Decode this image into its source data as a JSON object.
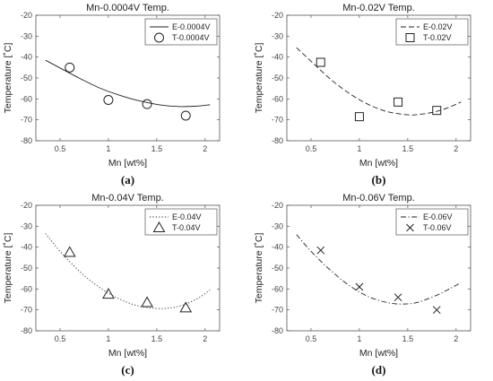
{
  "figure": {
    "panels": [
      "(a)",
      "(b)",
      "(c)",
      "(d)"
    ]
  },
  "chart_data": [
    {
      "type": "line",
      "panel_label": "(a)",
      "title": "Mn-0.0004V Temp.",
      "xlabel": "Mn [wt%]",
      "ylabel": "Temperature [˚C]",
      "xlim": [
        0.25,
        2.15
      ],
      "ylim": [
        -80,
        -20
      ],
      "xticks": [
        0.5,
        1,
        1.5,
        2
      ],
      "xtick_labels": [
        "0.5",
        "1",
        "1.5",
        "2"
      ],
      "yticks": [
        -80,
        -70,
        -60,
        -50,
        -40,
        -30,
        -20
      ],
      "ytick_labels": [
        "-80",
        "-70",
        "-60",
        "-50",
        "-40",
        "-30",
        "-20"
      ],
      "legend_position": "top-right",
      "series": [
        {
          "name": "E-0.0004V",
          "kind": "curve",
          "dash": "solid",
          "x": [
            0.35,
            0.5,
            0.7,
            0.9,
            1.1,
            1.3,
            1.5,
            1.7,
            1.9,
            2.05
          ],
          "y": [
            -41.5,
            -45.2,
            -50.1,
            -54.6,
            -58.0,
            -60.7,
            -62.6,
            -63.6,
            -63.5,
            -62.8
          ]
        },
        {
          "name": "T-0.0004V",
          "kind": "markers",
          "marker": "circle",
          "x": [
            0.6,
            1.0,
            1.4,
            1.8
          ],
          "y": [
            -45,
            -60.5,
            -62.5,
            -68
          ]
        }
      ]
    },
    {
      "type": "line",
      "panel_label": "(b)",
      "title": "Mn-0.02V Temp.",
      "xlabel": "Mn [wt%]",
      "ylabel": "Temperature [˚C]",
      "xlim": [
        0.25,
        2.15
      ],
      "ylim": [
        -80,
        -20
      ],
      "xticks": [
        0.5,
        1,
        1.5,
        2
      ],
      "xtick_labels": [
        "0.5",
        "1",
        "1.5",
        "2"
      ],
      "yticks": [
        -80,
        -70,
        -60,
        -50,
        -40,
        -30,
        -20
      ],
      "ytick_labels": [
        "-80",
        "-70",
        "-60",
        "-50",
        "-40",
        "-30",
        "-20"
      ],
      "legend_position": "top-right",
      "series": [
        {
          "name": "E-0.02V",
          "kind": "curve",
          "dash": "dashed",
          "x": [
            0.35,
            0.5,
            0.7,
            0.9,
            1.1,
            1.3,
            1.5,
            1.6,
            1.75,
            1.9,
            2.05
          ],
          "y": [
            -35.5,
            -42.0,
            -50.5,
            -57.5,
            -62.8,
            -66.2,
            -67.6,
            -67.5,
            -66.5,
            -64.5,
            -61.5
          ]
        },
        {
          "name": "T-0.02V",
          "kind": "markers",
          "marker": "square",
          "x": [
            0.6,
            1.0,
            1.4,
            1.8
          ],
          "y": [
            -42.5,
            -68.5,
            -61.5,
            -65.5
          ]
        }
      ]
    },
    {
      "type": "line",
      "panel_label": "(c)",
      "title": "Mn-0.04V Temp.",
      "xlabel": "Mn [wt%]",
      "ylabel": "Temperature [˚C]",
      "xlim": [
        0.25,
        2.15
      ],
      "ylim": [
        -80,
        -20
      ],
      "xticks": [
        0.5,
        1,
        1.5,
        2
      ],
      "xtick_labels": [
        "0.5",
        "1",
        "1.5",
        "2"
      ],
      "yticks": [
        -80,
        -70,
        -60,
        -50,
        -40,
        -30,
        -20
      ],
      "ytick_labels": [
        "-80",
        "-70",
        "-60",
        "-50",
        "-40",
        "-30",
        "-20"
      ],
      "legend_position": "top-right",
      "series": [
        {
          "name": "E-0.04V",
          "kind": "curve",
          "dash": "dotted",
          "x": [
            0.35,
            0.5,
            0.7,
            0.9,
            1.1,
            1.3,
            1.5,
            1.65,
            1.8,
            1.95,
            2.05
          ],
          "y": [
            -33.5,
            -42.0,
            -51.5,
            -59.0,
            -64.5,
            -68.0,
            -69.3,
            -69.0,
            -67.2,
            -63.8,
            -60.5
          ]
        },
        {
          "name": "T-0.04V",
          "kind": "markers",
          "marker": "triangle",
          "x": [
            0.6,
            1.0,
            1.4,
            1.8
          ],
          "y": [
            -42.5,
            -62.5,
            -66.5,
            -69
          ]
        }
      ]
    },
    {
      "type": "line",
      "panel_label": "(d)",
      "title": "Mn-0.06V Temp.",
      "xlabel": "Mn [wt%]",
      "ylabel": "Temperature [˚C]",
      "xlim": [
        0.25,
        2.15
      ],
      "ylim": [
        -80,
        -20
      ],
      "xticks": [
        0.5,
        1,
        1.5,
        2
      ],
      "xtick_labels": [
        "0.5",
        "1",
        "1.5",
        "2"
      ],
      "yticks": [
        -80,
        -70,
        -60,
        -50,
        -40,
        -30,
        -20
      ],
      "ytick_labels": [
        "-80",
        "-70",
        "-60",
        "-50",
        "-40",
        "-30",
        "-20"
      ],
      "legend_position": "top-right",
      "series": [
        {
          "name": "E-0.06V",
          "kind": "curve",
          "dash": "dashdot",
          "x": [
            0.35,
            0.5,
            0.7,
            0.9,
            1.1,
            1.3,
            1.45,
            1.6,
            1.8,
            1.95,
            2.05
          ],
          "y": [
            -34.0,
            -42.0,
            -51.0,
            -58.5,
            -63.8,
            -66.6,
            -67.2,
            -66.4,
            -63.0,
            -59.5,
            -57.0
          ]
        },
        {
          "name": "T-0.06V",
          "kind": "markers",
          "marker": "cross",
          "x": [
            0.6,
            1.0,
            1.4,
            1.8
          ],
          "y": [
            -41.5,
            -59,
            -64,
            -70
          ]
        }
      ]
    }
  ]
}
